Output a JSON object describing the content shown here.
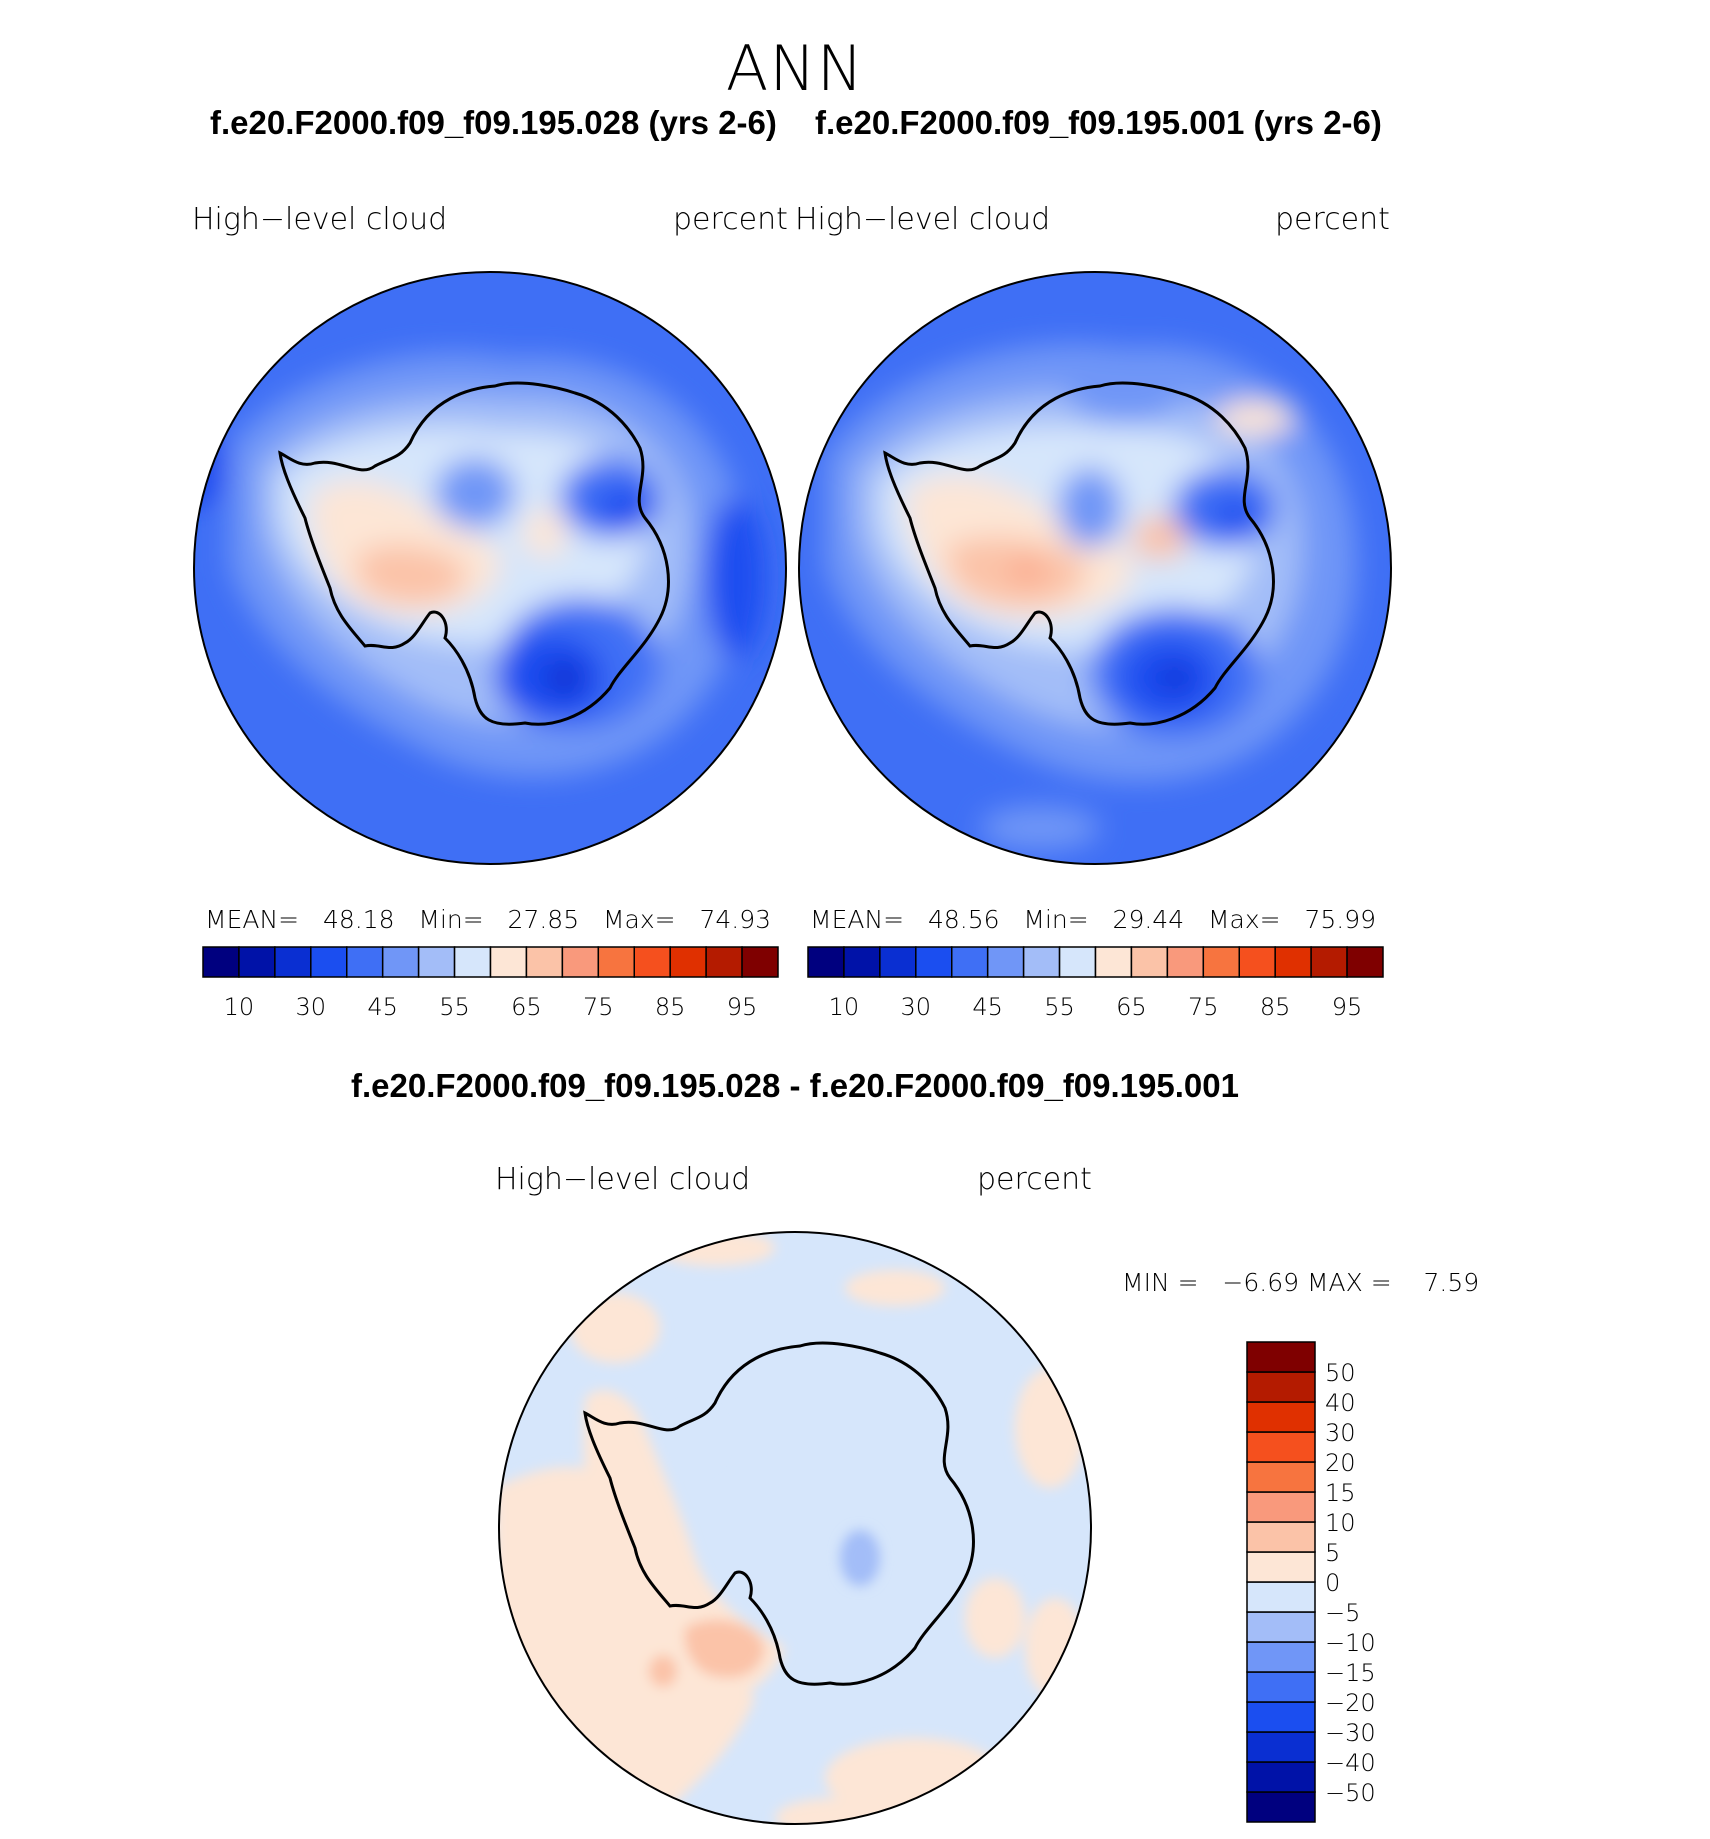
{
  "title": "ANN",
  "panels": [
    {
      "case_title": "f.e20.F2000.f09_f09.195.028 (yrs 2-6)",
      "variable": "High−level  cloud",
      "units": "percent",
      "mean_label": "MEAN=",
      "mean": "48.18",
      "min_label": "Min=",
      "min": "27.85",
      "max_label": "Max=",
      "max": "74.93"
    },
    {
      "case_title": "f.e20.F2000.f09_f09.195.001 (yrs 2-6)",
      "variable": "High−level  cloud",
      "units": "percent",
      "mean_label": "MEAN=",
      "mean": "48.56",
      "min_label": "Min=",
      "min": "29.44",
      "max_label": "Max=",
      "max": "75.99"
    }
  ],
  "difference": {
    "title": "f.e20.F2000.f09_f09.195.028 - f.e20.F2000.f09_f09.195.001",
    "variable": "High−level  cloud",
    "units": "percent",
    "min_label": "MIN =",
    "min": "−6.69",
    "max_label": "MAX =",
    "max": "7.59"
  },
  "colorbar_abs": {
    "colors": [
      "#00007f",
      "#0012a8",
      "#0a2fd2",
      "#1b4ef0",
      "#3f6ff5",
      "#7096f7",
      "#a3bdf8",
      "#d6e6fb",
      "#fde6d6",
      "#fbc3a8",
      "#f9997c",
      "#f7743f",
      "#f5501e",
      "#e03000",
      "#b41b00",
      "#7f0000"
    ],
    "tick_labels": [
      "10",
      "30",
      "45",
      "55",
      "65",
      "75",
      "85",
      "95"
    ]
  },
  "colorbar_diff": {
    "colors": [
      "#00007f",
      "#0012a8",
      "#0a2fd2",
      "#1b4ef0",
      "#3f6ff5",
      "#7096f7",
      "#a3bdf8",
      "#d6e6fb",
      "#fde6d6",
      "#fbc3a8",
      "#f9997c",
      "#f7743f",
      "#f5501e",
      "#e03000",
      "#b41b00",
      "#7f0000"
    ],
    "tick_labels": [
      "50",
      "40",
      "30",
      "20",
      "15",
      "10",
      "5",
      "0",
      "−5",
      "−10",
      "−15",
      "−20",
      "−30",
      "−40",
      "−50"
    ]
  },
  "map_colors": {
    "ocean_base": "#3f6ff5",
    "diff_base": "#d6e6fb",
    "coast": "#000000"
  }
}
